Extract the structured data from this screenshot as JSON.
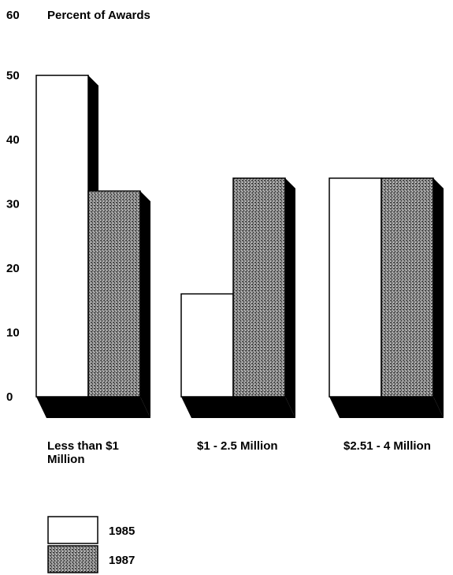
{
  "chart_data": {
    "type": "bar",
    "title": "",
    "ylabel": "Percent of Awards",
    "xlabel": "",
    "ylim": [
      0,
      60
    ],
    "yticks": [
      0,
      10,
      20,
      30,
      40,
      50,
      60
    ],
    "grid": false,
    "legend_position": "bottom-left",
    "categories": [
      "Less than $1 Million",
      "$1 - 2.5 Million",
      "$2.51 - 4 Million"
    ],
    "category_lines": [
      [
        "Less than $1",
        "Million"
      ],
      [
        "$1 - 2.5 Million"
      ],
      [
        "$2.51 - 4 Million"
      ]
    ],
    "series": [
      {
        "name": "1985",
        "values": [
          50,
          16,
          34
        ],
        "fill": "#ffffff"
      },
      {
        "name": "1987",
        "values": [
          32,
          34,
          34
        ],
        "fill": "#7a7a7a"
      }
    ]
  }
}
